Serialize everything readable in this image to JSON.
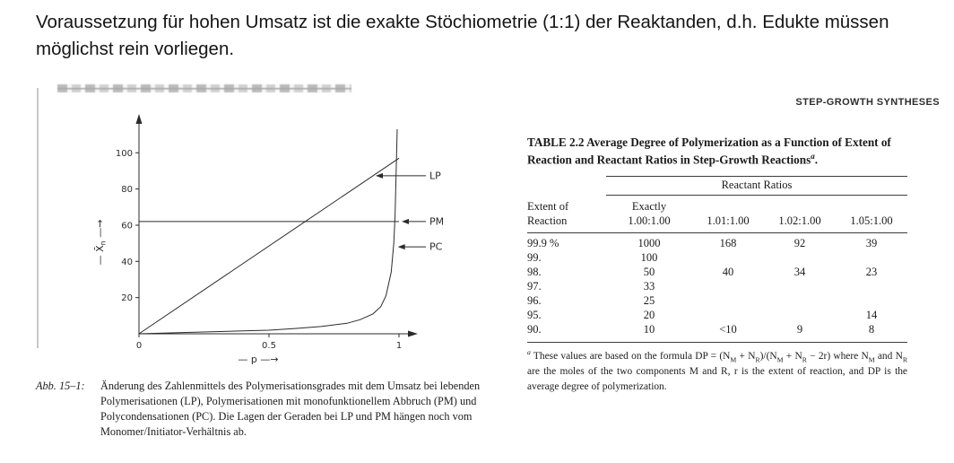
{
  "page": {
    "heading": "Voraussetzung für hohen Umsatz ist die exakte Stöchiometrie (1:1) der Reaktanden, d.h. Edukte müssen möglichst rein vorliegen."
  },
  "running_head": "STEP-GROWTH SYNTHESES",
  "figure": {
    "caption_label": "Abb. 15–1:",
    "caption_text": "Änderung des Zahlenmittels des Polymerisationsgrades mit dem Umsatz bei lebenden Polymerisationen (LP), Polymerisationen mit monofunktionellem Abbruch (PM) und Polycondensationen (PC). Die Lagen der Geraden bei LP und PM hängen noch vom Monomer/Initiator-Verhältnis ab."
  },
  "chart_data": {
    "type": "line",
    "title": "",
    "xlabel": "p",
    "ylabel": "X̄n",
    "xlim": [
      0,
      1
    ],
    "ylim": [
      0,
      115
    ],
    "x_ticks": [
      0,
      0.5,
      1
    ],
    "y_ticks": [
      20,
      40,
      60,
      80,
      100
    ],
    "grid": false,
    "series": [
      {
        "name": "LP",
        "points": [
          [
            0,
            0
          ],
          [
            1,
            97
          ]
        ]
      },
      {
        "name": "PM",
        "points": [
          [
            0,
            62
          ],
          [
            1,
            62
          ]
        ]
      },
      {
        "name": "PC",
        "points": [
          [
            0,
            0
          ],
          [
            0.2,
            0.8
          ],
          [
            0.4,
            1.6
          ],
          [
            0.5,
            2
          ],
          [
            0.6,
            2.9
          ],
          [
            0.7,
            4
          ],
          [
            0.8,
            5.8
          ],
          [
            0.85,
            7.8
          ],
          [
            0.9,
            11
          ],
          [
            0.93,
            15
          ],
          [
            0.95,
            21
          ],
          [
            0.97,
            34
          ],
          [
            0.98,
            50
          ],
          [
            0.985,
            65
          ],
          [
            0.99,
            95
          ],
          [
            0.993,
            113
          ]
        ]
      }
    ],
    "series_labels": [
      {
        "text": "LP",
        "at": [
          0.9,
          87.3
        ]
      },
      {
        "text": "PM",
        "at": [
          1.0,
          62
        ]
      },
      {
        "text": "PC",
        "at": [
          0.985,
          48
        ]
      }
    ]
  },
  "table": {
    "label": "TABLE 2.2",
    "title": "  Average Degree of Polymerization as a Function of Extent of Reaction and Reactant Ratios in Step-Growth Reactions",
    "title_note_marker": "a",
    "title_suffix": ".",
    "group_header": "Reactant Ratios",
    "columns": [
      "Extent of\nReaction",
      "Exactly\n1.00:1.00",
      "1.01:1.00",
      "1.02:1.00",
      "1.05:1.00"
    ],
    "rows": [
      [
        "99.9 %",
        "1000",
        "168",
        "92",
        "39"
      ],
      [
        "99.",
        "100",
        "",
        "",
        ""
      ],
      [
        "98.",
        "50",
        "40",
        "34",
        "23"
      ],
      [
        "97.",
        "33",
        "",
        "",
        ""
      ],
      [
        "96.",
        "25",
        "",
        "",
        ""
      ],
      [
        "95.",
        "20",
        "",
        "",
        "14"
      ],
      [
        "90.",
        "10",
        "<10",
        "9",
        "8"
      ]
    ],
    "footnote": {
      "marker": "a",
      "segments": [
        {
          "t": " These values are based on the formula DP = (N"
        },
        {
          "t": "M",
          "s": "sub"
        },
        {
          "t": " + N"
        },
        {
          "t": "R",
          "s": "sub"
        },
        {
          "t": ")/(N"
        },
        {
          "t": "M",
          "s": "sub"
        },
        {
          "t": " + N"
        },
        {
          "t": "R",
          "s": "sub"
        },
        {
          "t": " − 2r) where N"
        },
        {
          "t": "M",
          "s": "sub"
        },
        {
          "t": " and N"
        },
        {
          "t": "R",
          "s": "sub"
        },
        {
          "t": " are the moles of the two components M and R, r is the extent of reaction, and DP is the average degree of polymerization."
        }
      ]
    }
  }
}
